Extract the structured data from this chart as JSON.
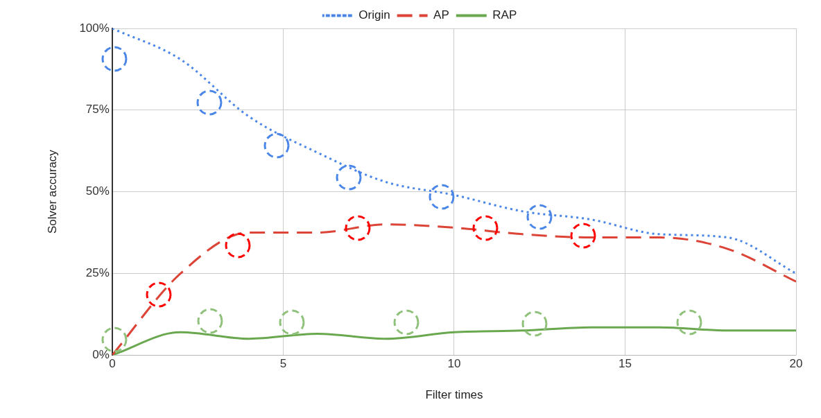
{
  "chart_data": {
    "type": "line",
    "xlabel": "Filter times",
    "ylabel": "Solver accuracy",
    "x": [
      0,
      2,
      4,
      6,
      8,
      10,
      12,
      14,
      16,
      18,
      20
    ],
    "series": [
      {
        "name": "Origin",
        "color": "#4a86e8",
        "line_style": "dotted",
        "values": [
          100,
          90.5,
          73,
          62,
          53,
          49,
          44,
          41.5,
          37,
          36,
          25
        ]
      },
      {
        "name": "AP",
        "color": "#db4437",
        "line_style": "dashed",
        "values": [
          0,
          25,
          37.5,
          37.5,
          40,
          39,
          37,
          36,
          36,
          32.5,
          22.5
        ]
      },
      {
        "name": "RAP",
        "color": "#6aa84f",
        "line_style": "solid",
        "values": [
          0,
          7,
          5,
          6.5,
          5,
          7,
          7.5,
          8.5,
          8.5,
          7.5,
          7.5
        ]
      }
    ],
    "xlim": [
      0,
      20
    ],
    "xticks": [
      0,
      5,
      10,
      15,
      20
    ],
    "ylim": [
      0,
      100
    ],
    "yticks": [
      {
        "value": 0,
        "label": "0%"
      },
      {
        "value": 25,
        "label": "25%"
      },
      {
        "value": 50,
        "label": "50%"
      },
      {
        "value": 75,
        "label": "75%"
      },
      {
        "value": 100,
        "label": "100%"
      }
    ],
    "grid": true,
    "legend": "top",
    "marker": "none"
  }
}
